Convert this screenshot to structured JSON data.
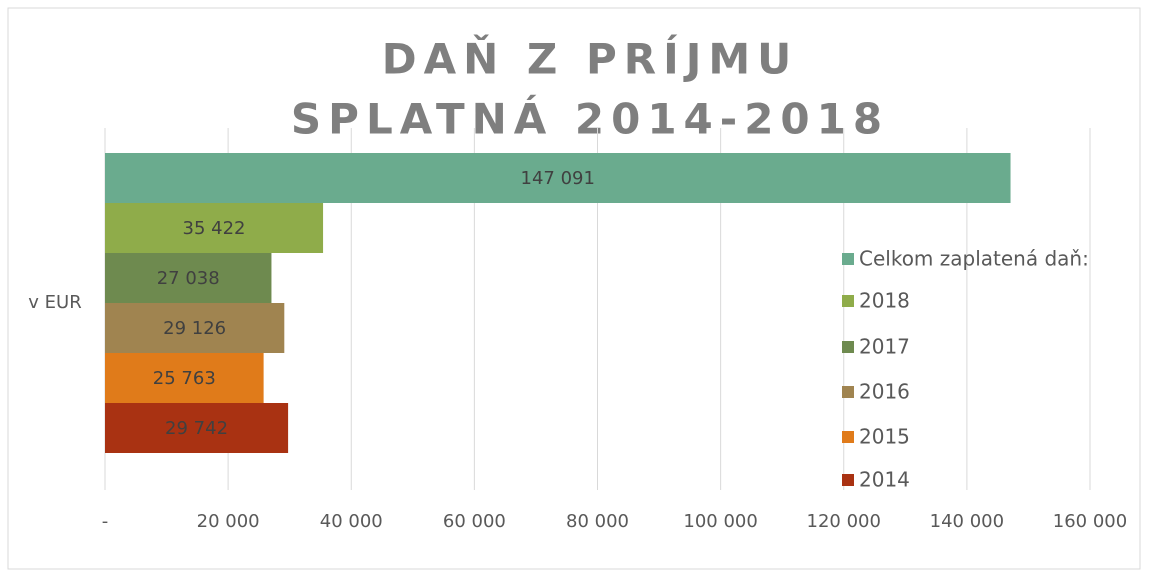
{
  "chart_data": {
    "type": "bar",
    "orientation": "horizontal",
    "title": [
      "DAŇ Z PRÍJMU",
      "SPLATNÁ 2014-2018"
    ],
    "categories": [
      "v EUR"
    ],
    "series": [
      {
        "name": "Celkom zaplatená daň:",
        "color": "#6aab8e",
        "values": [
          147091
        ],
        "value_labels": [
          "147 091"
        ]
      },
      {
        "name": "2018",
        "color": "#8fac4a",
        "values": [
          35422
        ],
        "value_labels": [
          "35 422"
        ]
      },
      {
        "name": "2017",
        "color": "#6e8a4f",
        "values": [
          27038
        ],
        "value_labels": [
          "27 038"
        ]
      },
      {
        "name": "2016",
        "color": "#a08450",
        "values": [
          29126
        ],
        "value_labels": [
          "29 126"
        ]
      },
      {
        "name": "2015",
        "color": "#e07b1a",
        "values": [
          25763
        ],
        "value_labels": [
          "25 763"
        ]
      },
      {
        "name": "2014",
        "color": "#a93212",
        "values": [
          29742
        ],
        "value_labels": [
          "29 742"
        ]
      }
    ],
    "xlim": [
      0,
      160000
    ],
    "xticks": [
      {
        "value": 0,
        "label": "-"
      },
      {
        "value": 20000,
        "label": "20 000"
      },
      {
        "value": 40000,
        "label": "40 000"
      },
      {
        "value": 60000,
        "label": "60 000"
      },
      {
        "value": 80000,
        "label": "80 000"
      },
      {
        "value": 100000,
        "label": "100 000"
      },
      {
        "value": 120000,
        "label": "120 000"
      },
      {
        "value": 140000,
        "label": "140 000"
      },
      {
        "value": 160000,
        "label": "160 000"
      }
    ],
    "grid": true,
    "legend": "right"
  }
}
